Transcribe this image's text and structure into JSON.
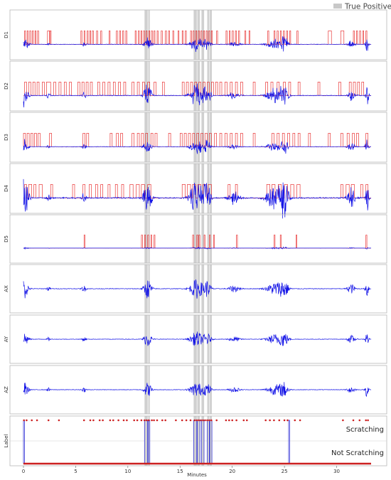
{
  "figure": {
    "legend_label": "True Positives",
    "xlabel": "Minutes",
    "colors": {
      "signal": "#1010e6",
      "events": "#e61a1a",
      "highlight": "#c8c8c8",
      "label_trace": "#3a3ad8",
      "label_points": "#cc2020",
      "frame": "#b8b8b8"
    }
  },
  "chart_data": [
    {
      "type": "line",
      "panels": [
        "D1",
        "D2",
        "D3",
        "D4",
        "D5",
        "AX",
        "AY",
        "AZ"
      ],
      "x_range": [
        0,
        33.3
      ],
      "true_positive_intervals_min": [
        [
          11.6,
          11.9
        ],
        [
          11.95,
          12.1
        ],
        [
          16.3,
          16.6
        ],
        [
          16.65,
          16.9
        ],
        [
          17.05,
          17.3
        ],
        [
          17.6,
          17.8
        ],
        [
          17.85,
          18.05
        ]
      ],
      "event_series": {
        "D1": [
          [
            0.1,
            0.2
          ],
          [
            0.35,
            0.45
          ],
          [
            0.6,
            0.7
          ],
          [
            0.85,
            0.95
          ],
          [
            1.1,
            1.2
          ],
          [
            1.35,
            1.45
          ],
          [
            2.3,
            2.5
          ],
          [
            2.55,
            2.65
          ],
          [
            5.5,
            5.6
          ],
          [
            5.8,
            5.9
          ],
          [
            6.1,
            6.2
          ],
          [
            6.35,
            6.45
          ],
          [
            6.6,
            6.7
          ],
          [
            7.0,
            7.1
          ],
          [
            7.4,
            7.5
          ],
          [
            8.2,
            8.3
          ],
          [
            8.9,
            9.0
          ],
          [
            9.2,
            9.3
          ],
          [
            9.5,
            9.6
          ],
          [
            9.8,
            9.9
          ],
          [
            10.7,
            10.8
          ],
          [
            11.0,
            11.1
          ],
          [
            11.25,
            11.35
          ],
          [
            11.5,
            11.6
          ],
          [
            11.75,
            11.85
          ],
          [
            12.0,
            12.1
          ],
          [
            12.25,
            12.35
          ],
          [
            12.5,
            12.6
          ],
          [
            12.8,
            12.9
          ],
          [
            13.2,
            13.3
          ],
          [
            13.6,
            13.7
          ],
          [
            13.9,
            14.0
          ],
          [
            14.3,
            14.4
          ],
          [
            14.8,
            14.9
          ],
          [
            15.2,
            15.3
          ],
          [
            15.5,
            15.6
          ],
          [
            16.0,
            16.1
          ],
          [
            16.25,
            16.35
          ],
          [
            16.5,
            16.6
          ],
          [
            16.75,
            16.85
          ],
          [
            17.0,
            17.1
          ],
          [
            17.25,
            17.35
          ],
          [
            17.5,
            17.6
          ],
          [
            17.75,
            17.85
          ],
          [
            18.0,
            18.1
          ],
          [
            18.5,
            18.6
          ],
          [
            19.4,
            19.5
          ],
          [
            19.7,
            19.8
          ],
          [
            20.0,
            20.1
          ],
          [
            20.3,
            20.4
          ],
          [
            20.6,
            20.7
          ],
          [
            21.2,
            21.3
          ],
          [
            21.6,
            21.7
          ],
          [
            23.4,
            23.5
          ],
          [
            24.0,
            24.1
          ],
          [
            24.3,
            24.4
          ],
          [
            24.6,
            24.7
          ],
          [
            24.9,
            25.0
          ],
          [
            25.2,
            25.3
          ],
          [
            25.5,
            25.6
          ],
          [
            26.2,
            26.3
          ],
          [
            29.2,
            29.5
          ],
          [
            30.4,
            30.7
          ],
          [
            31.6,
            31.7
          ],
          [
            31.9,
            32.0
          ],
          [
            32.2,
            32.3
          ],
          [
            32.5,
            32.6
          ],
          [
            32.8,
            32.9
          ]
        ],
        "D2": [
          [
            0.1,
            0.3
          ],
          [
            0.5,
            0.7
          ],
          [
            0.9,
            1.1
          ],
          [
            1.3,
            1.5
          ],
          [
            1.8,
            2.0
          ],
          [
            2.2,
            2.6
          ],
          [
            2.9,
            3.1
          ],
          [
            3.4,
            3.6
          ],
          [
            3.9,
            4.1
          ],
          [
            4.4,
            4.6
          ],
          [
            5.2,
            5.4
          ],
          [
            5.6,
            5.8
          ],
          [
            6.0,
            6.2
          ],
          [
            6.4,
            6.6
          ],
          [
            7.1,
            7.3
          ],
          [
            7.6,
            7.8
          ],
          [
            8.1,
            8.3
          ],
          [
            8.6,
            8.8
          ],
          [
            9.1,
            9.3
          ],
          [
            9.6,
            9.8
          ],
          [
            10.4,
            10.6
          ],
          [
            10.9,
            11.1
          ],
          [
            11.4,
            11.6
          ],
          [
            11.9,
            12.1
          ],
          [
            12.5,
            12.7
          ],
          [
            13.3,
            13.5
          ],
          [
            15.2,
            15.4
          ],
          [
            15.6,
            15.8
          ],
          [
            16.0,
            16.2
          ],
          [
            16.4,
            16.6
          ],
          [
            16.8,
            17.0
          ],
          [
            17.2,
            17.4
          ],
          [
            17.6,
            17.8
          ],
          [
            18.0,
            18.2
          ],
          [
            18.4,
            18.6
          ],
          [
            18.8,
            19.0
          ],
          [
            19.3,
            19.5
          ],
          [
            19.8,
            20.0
          ],
          [
            20.3,
            20.5
          ],
          [
            20.8,
            21.0
          ],
          [
            22.0,
            22.2
          ],
          [
            23.2,
            23.4
          ],
          [
            23.7,
            23.9
          ],
          [
            24.3,
            24.5
          ],
          [
            24.9,
            25.1
          ],
          [
            25.4,
            25.6
          ],
          [
            26.3,
            26.5
          ],
          [
            28.2,
            28.4
          ],
          [
            30.2,
            30.4
          ],
          [
            31.2,
            31.4
          ],
          [
            31.6,
            31.8
          ],
          [
            32.0,
            32.2
          ],
          [
            32.4,
            32.6
          ]
        ],
        "D3": [
          [
            0.0,
            0.2
          ],
          [
            0.35,
            0.55
          ],
          [
            0.7,
            0.9
          ],
          [
            1.05,
            1.25
          ],
          [
            1.4,
            1.6
          ],
          [
            2.5,
            2.7
          ],
          [
            5.7,
            5.9
          ],
          [
            6.05,
            6.25
          ],
          [
            8.3,
            8.5
          ],
          [
            8.9,
            9.1
          ],
          [
            9.3,
            9.5
          ],
          [
            10.4,
            10.6
          ],
          [
            10.9,
            11.1
          ],
          [
            11.3,
            11.5
          ],
          [
            11.7,
            11.9
          ],
          [
            12.2,
            12.4
          ],
          [
            12.6,
            12.8
          ],
          [
            13.9,
            14.1
          ],
          [
            15.0,
            15.2
          ],
          [
            15.4,
            15.6
          ],
          [
            15.8,
            16.0
          ],
          [
            16.2,
            16.4
          ],
          [
            16.6,
            16.8
          ],
          [
            17.0,
            17.2
          ],
          [
            17.4,
            17.6
          ],
          [
            17.8,
            18.0
          ],
          [
            18.3,
            18.5
          ],
          [
            18.8,
            19.0
          ],
          [
            19.3,
            19.5
          ],
          [
            19.8,
            20.0
          ],
          [
            20.3,
            20.5
          ],
          [
            20.8,
            21.0
          ],
          [
            22.0,
            22.2
          ],
          [
            23.8,
            24.0
          ],
          [
            24.3,
            24.5
          ],
          [
            24.8,
            25.0
          ],
          [
            25.3,
            25.5
          ],
          [
            25.8,
            26.0
          ],
          [
            26.3,
            26.5
          ],
          [
            27.3,
            27.5
          ],
          [
            29.2,
            29.4
          ],
          [
            30.4,
            30.6
          ],
          [
            31.0,
            31.2
          ],
          [
            31.5,
            31.7
          ],
          [
            31.9,
            32.1
          ],
          [
            32.8,
            33.0
          ]
        ],
        "D4": [
          [
            0.1,
            0.3
          ],
          [
            0.5,
            0.8
          ],
          [
            1.0,
            1.2
          ],
          [
            1.5,
            1.8
          ],
          [
            2.6,
            2.8
          ],
          [
            4.7,
            4.9
          ],
          [
            5.7,
            5.9
          ],
          [
            6.3,
            6.5
          ],
          [
            6.9,
            7.1
          ],
          [
            7.4,
            7.6
          ],
          [
            8.1,
            8.3
          ],
          [
            8.8,
            9.0
          ],
          [
            9.4,
            9.6
          ],
          [
            10.2,
            10.5
          ],
          [
            10.8,
            11.1
          ],
          [
            11.3,
            11.6
          ],
          [
            11.9,
            12.2
          ],
          [
            15.2,
            15.5
          ],
          [
            15.7,
            16.0
          ],
          [
            16.2,
            16.5
          ],
          [
            16.7,
            17.0
          ],
          [
            17.2,
            17.5
          ],
          [
            17.7,
            18.0
          ],
          [
            19.6,
            19.8
          ],
          [
            20.3,
            20.5
          ],
          [
            23.3,
            23.6
          ],
          [
            23.8,
            24.1
          ],
          [
            24.4,
            24.7
          ],
          [
            25.0,
            25.3
          ],
          [
            25.6,
            25.9
          ],
          [
            26.2,
            26.5
          ],
          [
            30.4,
            30.6
          ],
          [
            30.9,
            31.2
          ],
          [
            31.4,
            31.7
          ],
          [
            32.3,
            32.5
          ],
          [
            32.8,
            33.0
          ]
        ],
        "D5": [
          [
            5.8,
            5.9
          ],
          [
            11.3,
            11.4
          ],
          [
            11.6,
            11.7
          ],
          [
            11.9,
            12.0
          ],
          [
            12.2,
            12.3
          ],
          [
            12.5,
            12.6
          ],
          [
            16.2,
            16.3
          ],
          [
            16.6,
            16.7
          ],
          [
            16.8,
            16.9
          ],
          [
            17.3,
            17.4
          ],
          [
            17.8,
            17.9
          ],
          [
            18.2,
            18.3
          ],
          [
            20.4,
            20.5
          ],
          [
            24.0,
            24.1
          ],
          [
            24.6,
            24.7
          ],
          [
            26.1,
            26.2
          ],
          [
            32.8,
            32.9
          ]
        ]
      },
      "label_panel": {
        "name": "Label",
        "classes": [
          "Not Scratching",
          "Scratching"
        ],
        "scratching_intervals_min": [
          [
            0.0,
            0.1
          ],
          [
            11.6,
            11.9
          ],
          [
            11.95,
            12.1
          ],
          [
            16.3,
            16.6
          ],
          [
            16.65,
            16.9
          ],
          [
            17.05,
            17.3
          ],
          [
            17.6,
            17.8
          ],
          [
            17.85,
            18.05
          ],
          [
            25.4,
            25.5
          ]
        ],
        "predicted_scratching_min": [
          0.05,
          0.3,
          0.8,
          1.3,
          2.4,
          3.4,
          5.8,
          6.4,
          6.7,
          7.3,
          7.6,
          8.3,
          8.6,
          9.1,
          9.6,
          9.9,
          10.6,
          10.9,
          11.3,
          11.6,
          11.8,
          12.0,
          12.3,
          12.5,
          12.8,
          13.3,
          13.6,
          14.6,
          15.2,
          15.6,
          16.0,
          16.4,
          16.6,
          16.8,
          17.0,
          17.2,
          17.4,
          17.6,
          17.8,
          18.0,
          18.5,
          19.4,
          19.7,
          20.0,
          20.4,
          21.1,
          21.4,
          23.2,
          23.6,
          24.0,
          24.5,
          25.0,
          25.3,
          26.0,
          26.5,
          30.6,
          31.6,
          32.2,
          32.8,
          33.0
        ]
      },
      "x_ticks": [
        0,
        5,
        10,
        15,
        20,
        25,
        30
      ],
      "xlabel": "Minutes",
      "legend": "top-right"
    }
  ]
}
